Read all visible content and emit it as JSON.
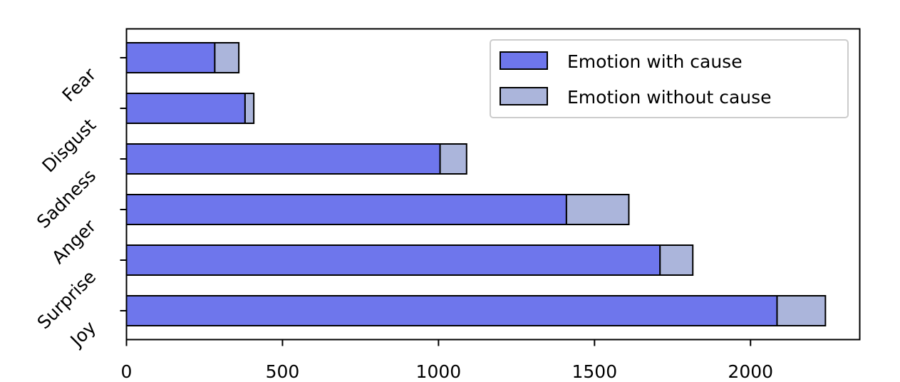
{
  "chart_data": {
    "type": "bar",
    "orientation": "horizontal",
    "stacked": true,
    "categories": [
      "Joy",
      "Surprise",
      "Anger",
      "Sadness",
      "Disgust",
      "Fear"
    ],
    "series": [
      {
        "name": "Emotion with cause",
        "values": [
          2085,
          1710,
          1410,
          1005,
          380,
          283
        ],
        "color": "#6e76ec"
      },
      {
        "name": "Emotion without cause",
        "values": [
          155,
          105,
          200,
          85,
          28,
          77
        ],
        "color": "#abb5db"
      }
    ],
    "xticks": [
      0,
      500,
      1000,
      1500,
      2000
    ],
    "xlim": [
      0,
      2350
    ],
    "title": "",
    "xlabel": "",
    "ylabel": "",
    "grid": false,
    "legend_position": "top-right",
    "bar_edge_color": "#000000"
  }
}
